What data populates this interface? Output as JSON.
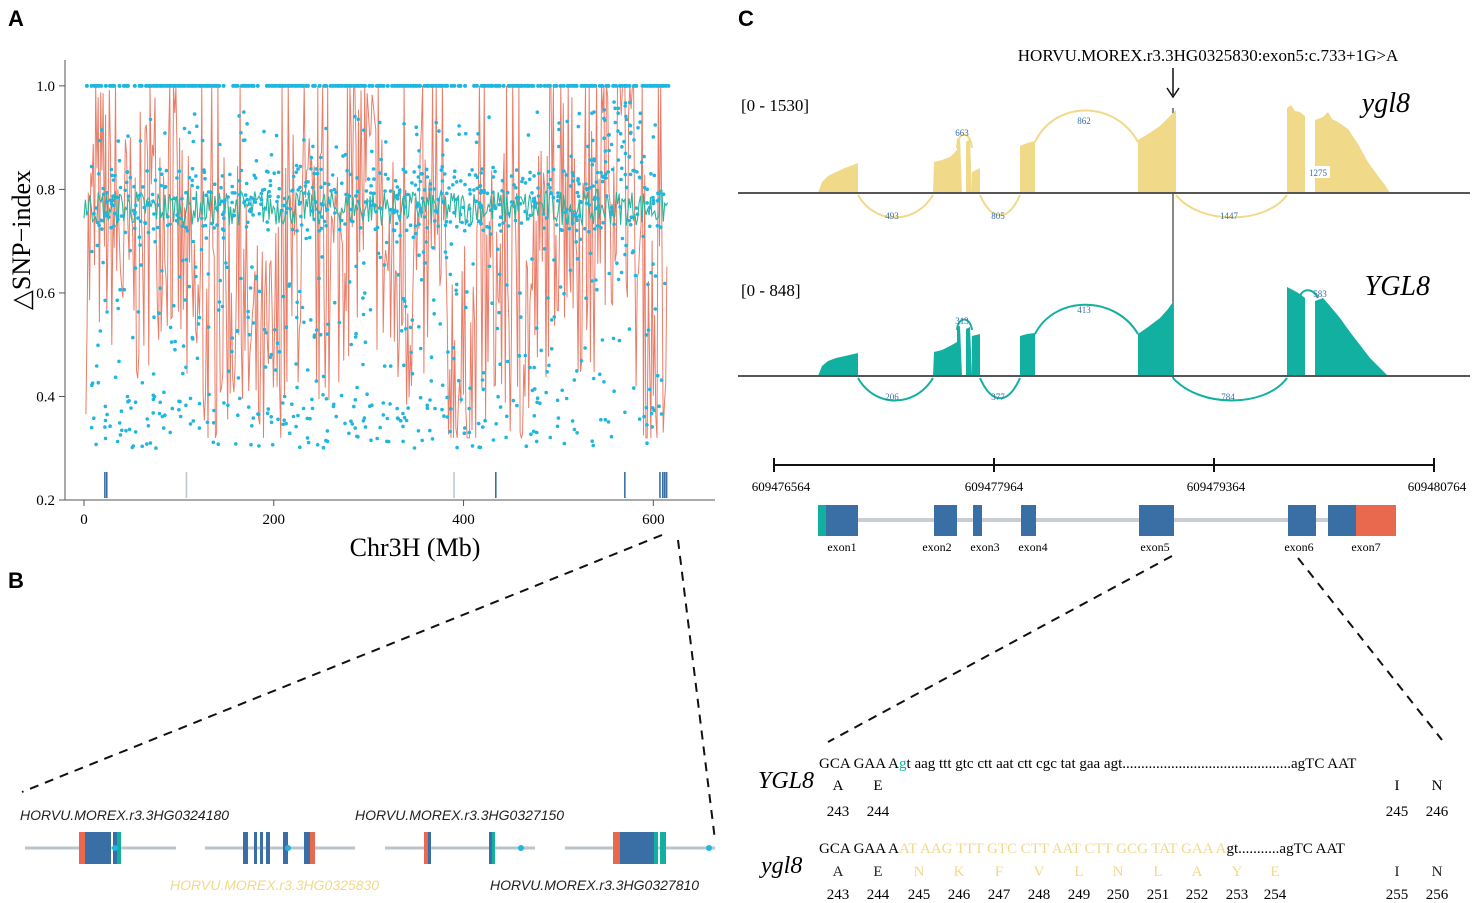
{
  "colors": {
    "blue": "#3a6fa6",
    "red": "#e8694d",
    "teal": "#12b0a0",
    "yellow": "#f1d98a",
    "dot": "#1fb6e0",
    "salmon": "#ea7d68",
    "tealLine": "#2ab49c",
    "grayLine": "#b9c3cc",
    "axis": "#555555",
    "text": "#222222"
  },
  "panelA": {
    "label": "A",
    "ylabel": "△SNP−index",
    "xlabel": "Chr3H (Mb)",
    "xticks": [
      "0",
      "200",
      "400",
      "600"
    ],
    "yticks": [
      "0.2",
      "0.4",
      "0.6",
      "0.8",
      "1.0"
    ]
  },
  "chart_data": {
    "type": "scatter",
    "title": "",
    "xlabel": "Chr3H (Mb)",
    "ylabel": "△SNP−index",
    "xlim": [
      -20,
      665
    ],
    "ylim": [
      0.2,
      1.05
    ],
    "series": [
      {
        "name": "SNP-index points",
        "kind": "scatter",
        "description": "per-SNP values, clustered at 1.0 and spread 0.3-1.0 over 0-615 Mb"
      },
      {
        "name": "sliding-window SNP-index",
        "kind": "line",
        "values_summary": "oscillates 0.35-1.0, mean ~0.65"
      },
      {
        "name": "threshold",
        "kind": "line",
        "values_summary": "approx 0.77 across chromosome"
      }
    ],
    "marker_ticks_mb": [
      22,
      24,
      108,
      390,
      434,
      570,
      607,
      610,
      612,
      614
    ]
  },
  "panelB": {
    "label": "B",
    "genes": [
      {
        "name": "HORVU.MOREX.r3.3HG0324180",
        "highlight": false
      },
      {
        "name": "HORVU.MOREX.r3.3HG0325830",
        "highlight": true
      },
      {
        "name": "HORVU.MOREX.r3.3HG0327150",
        "highlight": false
      },
      {
        "name": "HORVU.MOREX.r3.3HG0327810",
        "highlight": false
      }
    ]
  },
  "panelC": {
    "label": "C",
    "variant": "HORVU.MOREX.r3.3HG0325830:exon5:c.733+1G>A",
    "tracks": [
      {
        "range": "[0 - 1530]",
        "name": "ygl8",
        "junctions_top": [
          "663",
          "862"
        ],
        "junctions_bottom": [
          "493",
          "805",
          "1447"
        ],
        "box": "1275"
      },
      {
        "range": "[0 - 848]",
        "name": "YGL8",
        "junctions_top": [
          "313",
          "413",
          "583"
        ],
        "junctions_bottom": [
          "206",
          "377",
          "784"
        ]
      }
    ],
    "coords": [
      "609476564",
      "609477964",
      "609479364",
      "609480764"
    ],
    "exons": [
      "exon1",
      "exon2",
      "exon3",
      "exon4",
      "exon5",
      "exon6",
      "exon7"
    ],
    "wt": {
      "name": "YGL8",
      "seq_pre": "GCA GAA A",
      "seq_mark": "g",
      "seq_post": "t aag ttt gtc ctt aat ctt cgc tat gaa agt",
      "dots": ".............................................",
      "seq_end": "agTC AAT",
      "aa": [
        "A",
        "E",
        "I",
        "N"
      ],
      "num": [
        "243",
        "244",
        "245",
        "246"
      ]
    },
    "mut": {
      "name": "ygl8",
      "seq_pre": "GCA GAA A",
      "seq_mark": "AT AAG TTT GTC CTT AAT CTT GCG TAT GAA A",
      "seq_post": "gt",
      "dots": "...........",
      "seq_end": "agTC AAT",
      "aa_black": [
        "A",
        "E"
      ],
      "aa_yellow": [
        "N",
        "K",
        "F",
        "V",
        "L",
        "N",
        "L",
        "A",
        "Y",
        "E"
      ],
      "aa_end": [
        "I",
        "N"
      ],
      "num": [
        "243",
        "244",
        "245",
        "246",
        "247",
        "248",
        "249",
        "250",
        "251",
        "252",
        "253",
        "254",
        "255",
        "256"
      ]
    }
  }
}
